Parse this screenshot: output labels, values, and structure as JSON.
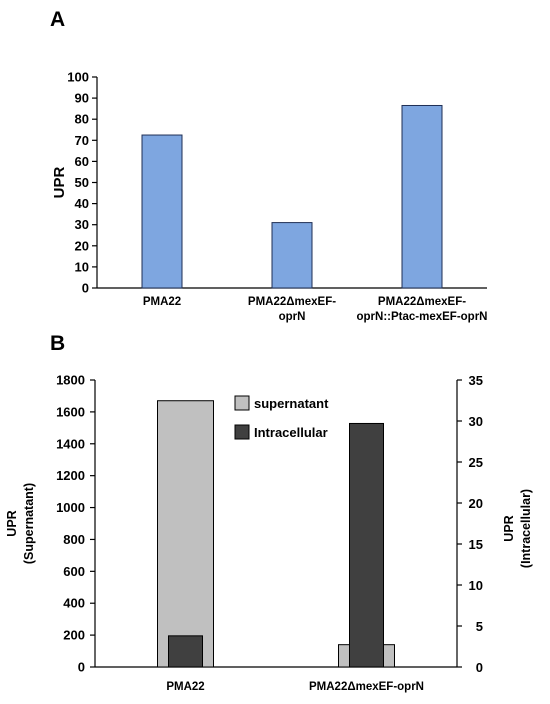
{
  "chart_data": [
    {
      "panel": "A",
      "type": "bar",
      "ylabel": "UPR",
      "ylim": [
        0,
        100
      ],
      "yticks": [
        0,
        10,
        20,
        30,
        40,
        50,
        60,
        70,
        80,
        90,
        100
      ],
      "categories": [
        [
          "PMA22"
        ],
        [
          "PMA22ΔmexEF-",
          "oprN"
        ],
        [
          "PMA22ΔmexEF-",
          "oprN::Ptac-mexEF-oprN"
        ]
      ],
      "values": [
        72.5,
        31,
        86.5
      ],
      "colors": {
        "fill": "#7ea6e0",
        "stroke": "#1f2f55"
      },
      "grid": false,
      "legend": "none"
    },
    {
      "panel": "B",
      "type": "bar",
      "ylabel_left": [
        "UPR",
        "(Supernatant)"
      ],
      "ylabel_right": [
        "UPR",
        "(Intracellular)"
      ],
      "ylim_left": [
        0,
        1800
      ],
      "ylim_right": [
        0,
        35
      ],
      "yticks_left": [
        0,
        200,
        400,
        600,
        800,
        1000,
        1200,
        1400,
        1600,
        1800
      ],
      "yticks_right": [
        0,
        5,
        10,
        15,
        20,
        25,
        30,
        35
      ],
      "categories": [
        "PMA22",
        "PMA22ΔmexEF-oprN"
      ],
      "series": [
        {
          "name": "supernatant",
          "axis": "left",
          "values": [
            1670,
            140
          ],
          "color": "#c0c0c0"
        },
        {
          "name": "Intracellular",
          "axis": "right",
          "values": [
            3.8,
            29.7
          ],
          "color": "#404040"
        }
      ],
      "grid": false,
      "legend": "top-center"
    }
  ]
}
